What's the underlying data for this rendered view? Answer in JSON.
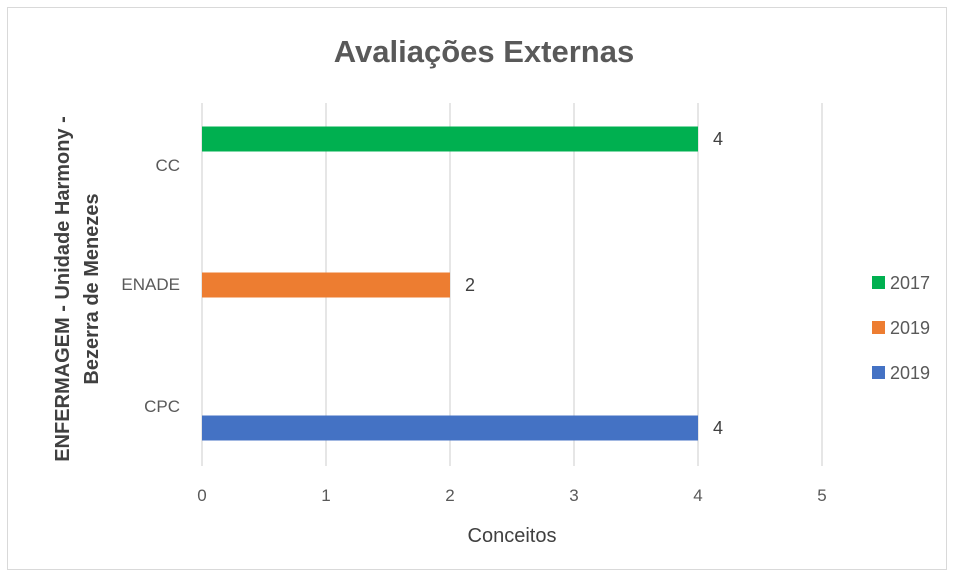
{
  "chart_data": {
    "type": "bar",
    "orientation": "horizontal",
    "title": "Avaliações Externas",
    "xlabel": "Conceitos",
    "ylabel_lines": [
      "ENFERMAGEM - Unidade Harmony -",
      "Bezerra de Menezes"
    ],
    "categories": [
      "CPC",
      "ENADE",
      "CC"
    ],
    "xlim": [
      0,
      5
    ],
    "xticks": [
      0,
      1,
      2,
      3,
      4,
      5
    ],
    "grid": true,
    "legend_position": "right",
    "series": [
      {
        "name": "2019",
        "color": "#4472c4",
        "values": [
          4,
          null,
          null
        ]
      },
      {
        "name": "2019",
        "color": "#ed7d31",
        "values": [
          null,
          2,
          null
        ]
      },
      {
        "name": "2017",
        "color": "#00b050",
        "values": [
          null,
          null,
          4
        ]
      }
    ],
    "legend_order": [
      2,
      1,
      0
    ]
  }
}
